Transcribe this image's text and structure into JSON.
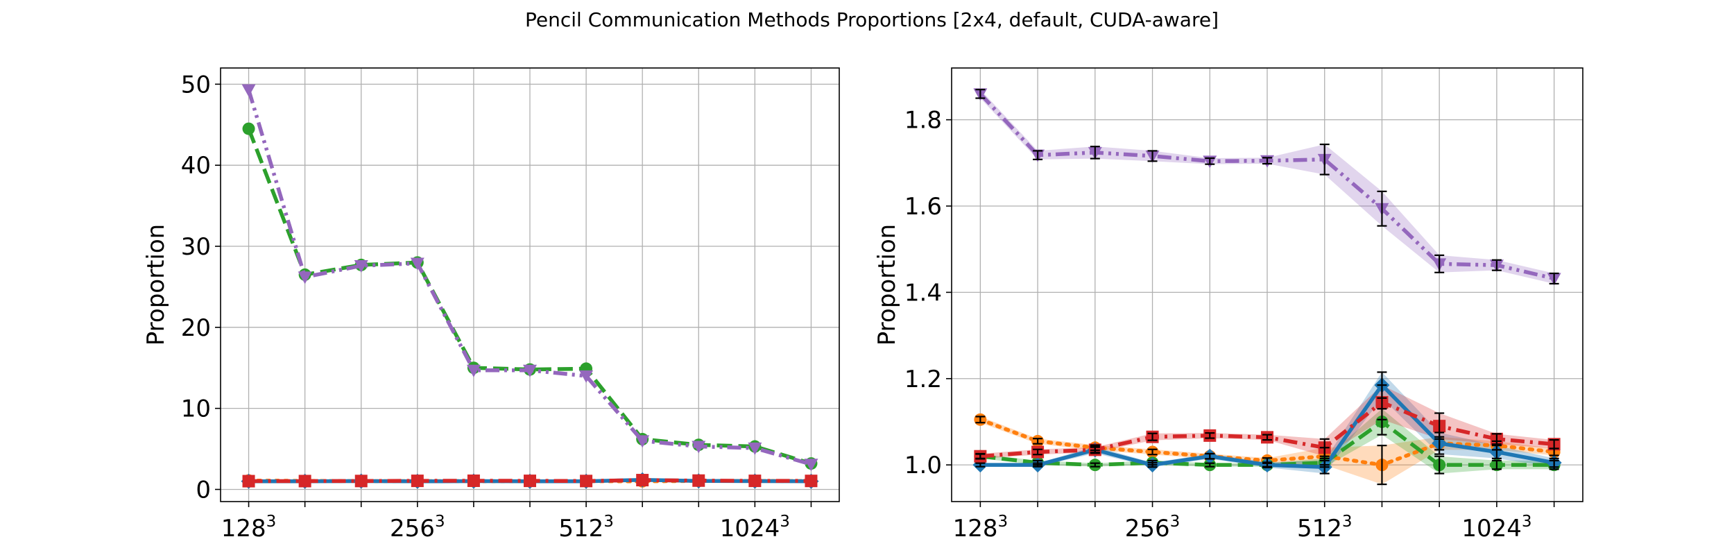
{
  "figure_title": "Pencil Communication Methods Proportions [2x4, default, CUDA-aware]",
  "colors": {
    "blue": "#1f77b4",
    "orange": "#ff7f0e",
    "green": "#2ca02c",
    "red": "#d62728",
    "purple": "#9467bd",
    "grid": "#b0b0b0"
  },
  "chart_data": [
    {
      "type": "line",
      "ylabel": "Proportion",
      "xlabel": "",
      "x": [
        1,
        2,
        3,
        4,
        5,
        6,
        7,
        8,
        9,
        10,
        11
      ],
      "xlim": [
        0.5,
        11.5
      ],
      "ylim": [
        -1.5,
        52
      ],
      "grid": true,
      "x_tick_labels": [
        {
          "x": 1,
          "base": "128",
          "sup": "3"
        },
        {
          "x": 4,
          "base": "256",
          "sup": "3"
        },
        {
          "x": 7,
          "base": "512",
          "sup": "3"
        },
        {
          "x": 10,
          "base": "1024",
          "sup": "3"
        }
      ],
      "y_ticks": [
        0,
        10,
        20,
        30,
        40,
        50
      ],
      "series": [
        {
          "color": "#ff7f0e",
          "style": "dotted",
          "marker": "circle",
          "values": [
            1.1,
            1.05,
            1.03,
            1.02,
            1.02,
            1.01,
            1.02,
            1.0,
            1.05,
            1.05,
            1.03
          ]
        },
        {
          "color": "#1f77b4",
          "style": "solid",
          "marker": "diamond",
          "values": [
            1.0,
            1.0,
            1.03,
            1.0,
            1.02,
            1.0,
            1.0,
            1.18,
            1.05,
            1.03,
            1.0
          ]
        },
        {
          "color": "#d62728",
          "style": "dashdot",
          "marker": "square",
          "values": [
            1.02,
            1.03,
            1.04,
            1.06,
            1.07,
            1.06,
            1.04,
            1.15,
            1.09,
            1.06,
            1.05
          ]
        },
        {
          "color": "#2ca02c",
          "style": "dashed",
          "marker": "circle",
          "values": [
            44.5,
            26.5,
            27.7,
            28.0,
            15.0,
            14.8,
            14.9,
            6.2,
            5.5,
            5.3,
            3.2
          ]
        },
        {
          "color": "#9467bd",
          "style": "dashdotdot",
          "marker": "triangle_down",
          "values": [
            49.3,
            26.2,
            27.6,
            27.9,
            14.7,
            14.7,
            14.0,
            6.0,
            5.3,
            5.1,
            3.1
          ]
        }
      ]
    },
    {
      "type": "line",
      "ylabel": "Proportion",
      "xlabel": "",
      "x": [
        1,
        2,
        3,
        4,
        5,
        6,
        7,
        8,
        9,
        10,
        11
      ],
      "xlim": [
        0.5,
        11.5
      ],
      "ylim": [
        0.915,
        1.92
      ],
      "grid": true,
      "x_tick_labels": [
        {
          "x": 1,
          "base": "128",
          "sup": "3"
        },
        {
          "x": 4,
          "base": "256",
          "sup": "3"
        },
        {
          "x": 7,
          "base": "512",
          "sup": "3"
        },
        {
          "x": 10,
          "base": "1024",
          "sup": "3"
        }
      ],
      "y_ticks": [
        1.0,
        1.2,
        1.4,
        1.6,
        1.8
      ],
      "series": [
        {
          "color": "#ff7f0e",
          "style": "dotted",
          "marker": "circle",
          "values": [
            1.105,
            1.055,
            1.04,
            1.03,
            1.02,
            1.01,
            1.02,
            1.0,
            1.05,
            1.045,
            1.03
          ],
          "errors": [
            0.007,
            0.006,
            0.006,
            0.006,
            0.006,
            0.006,
            0.02,
            0.045,
            0.015,
            0.01,
            0.008
          ],
          "band": true
        },
        {
          "color": "#2ca02c",
          "style": "dashed",
          "marker": "circle",
          "values": [
            1.02,
            1.005,
            1.0,
            1.005,
            1.0,
            1.0,
            1.005,
            1.1,
            1.0,
            1.0,
            1.0
          ],
          "errors": [
            0.005,
            0.005,
            0.004,
            0.005,
            0.004,
            0.004,
            0.01,
            0.03,
            0.02,
            0.01,
            0.01
          ],
          "band": true
        },
        {
          "color": "#1f77b4",
          "style": "solid",
          "marker": "diamond",
          "values": [
            1.0,
            1.0,
            1.035,
            1.0,
            1.02,
            1.0,
            0.995,
            1.185,
            1.05,
            1.03,
            1.005
          ],
          "errors": [
            0.004,
            0.004,
            0.008,
            0.005,
            0.006,
            0.006,
            0.015,
            0.03,
            0.025,
            0.015,
            0.01
          ],
          "band": true
        },
        {
          "color": "#d62728",
          "style": "dashdot",
          "marker": "square",
          "values": [
            1.02,
            1.03,
            1.035,
            1.065,
            1.068,
            1.064,
            1.04,
            1.145,
            1.09,
            1.06,
            1.048
          ],
          "errors": [
            0.006,
            0.006,
            0.006,
            0.008,
            0.006,
            0.006,
            0.02,
            0.04,
            0.03,
            0.012,
            0.01
          ],
          "band": true
        },
        {
          "color": "#9467bd",
          "style": "dashdotdot",
          "marker": "triangle_down",
          "values": [
            1.86,
            1.718,
            1.724,
            1.716,
            1.704,
            1.705,
            1.708,
            1.594,
            1.466,
            1.463,
            1.432
          ],
          "errors": [
            0.01,
            0.01,
            0.014,
            0.012,
            0.007,
            0.007,
            0.035,
            0.04,
            0.02,
            0.012,
            0.012
          ],
          "band": true
        }
      ]
    }
  ]
}
